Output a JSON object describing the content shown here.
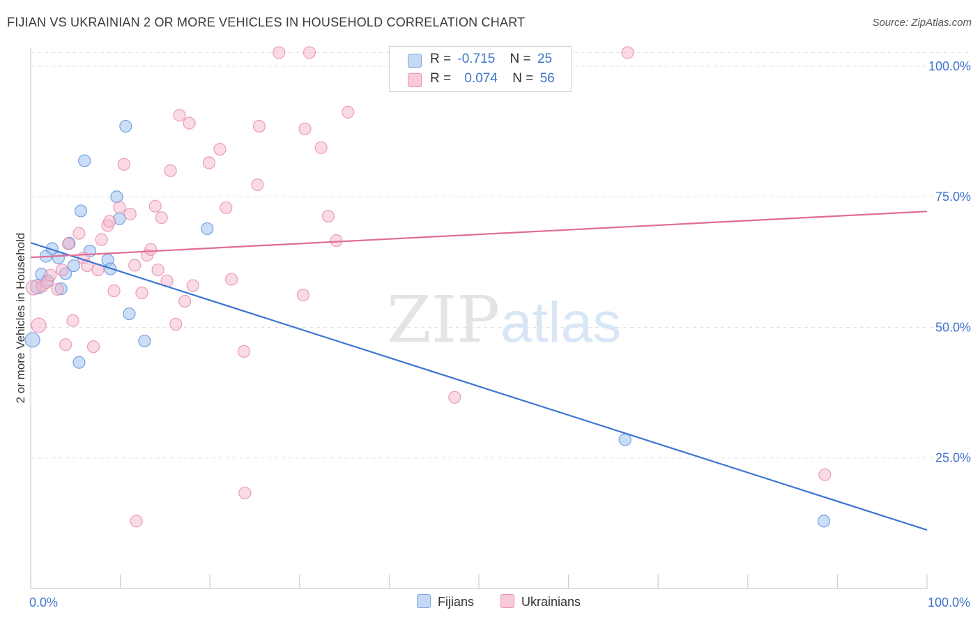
{
  "title": "FIJIAN VS UKRAINIAN 2 OR MORE VEHICLES IN HOUSEHOLD CORRELATION CHART",
  "source": "Source: ZipAtlas.com",
  "watermark": {
    "zip": "ZIP",
    "atlas": "atlas"
  },
  "legend_stats": [
    {
      "r_label": "R =",
      "r_value": "-0.715",
      "n_label": "N =",
      "n_value": "25",
      "color": "#a9c8f2"
    },
    {
      "r_label": "R =",
      "r_value": "0.074",
      "n_label": "N =",
      "n_value": "56",
      "color": "#f6b6cb"
    }
  ],
  "legend_bottom": [
    {
      "label": "Fijians",
      "color": "#a9c8f2"
    },
    {
      "label": "Ukrainians",
      "color": "#f6b6cb"
    }
  ],
  "chart_data": {
    "type": "scatter",
    "title": "FIJIAN VS UKRAINIAN 2 OR MORE VEHICLES IN HOUSEHOLD CORRELATION CHART",
    "xlabel": "",
    "ylabel": "2 or more Vehicles in Household",
    "xlim": [
      0,
      100
    ],
    "ylim": [
      0,
      104
    ],
    "x_tick_labels": [
      {
        "value": 0,
        "label": "0.0%"
      },
      {
        "value": 100,
        "label": "100.0%"
      }
    ],
    "y_tick_labels": [
      {
        "value": 25,
        "label": "25.0%"
      },
      {
        "value": 50,
        "label": "50.0%"
      },
      {
        "value": 75,
        "label": "75.0%"
      },
      {
        "value": 100,
        "label": "100.0%"
      }
    ],
    "grid": true,
    "legend_position": "top-center",
    "series": [
      {
        "name": "Fijians",
        "color": "#5a8fdb",
        "fill": "#a9c8f2",
        "line_color": "#3b76d1",
        "trend": {
          "x": [
            0,
            100
          ],
          "y": [
            66.2,
            11.2
          ]
        },
        "points": [
          {
            "x": 0.2,
            "y": 47.6
          },
          {
            "x": 0.8,
            "y": 57.8
          },
          {
            "x": 1.2,
            "y": 60.2
          },
          {
            "x": 1.7,
            "y": 63.6
          },
          {
            "x": 1.9,
            "y": 59.0
          },
          {
            "x": 2.4,
            "y": 65.1
          },
          {
            "x": 3.1,
            "y": 63.3
          },
          {
            "x": 3.4,
            "y": 57.4
          },
          {
            "x": 3.9,
            "y": 60.3
          },
          {
            "x": 4.3,
            "y": 66.1
          },
          {
            "x": 4.8,
            "y": 61.8
          },
          {
            "x": 5.4,
            "y": 43.3
          },
          {
            "x": 5.6,
            "y": 72.3
          },
          {
            "x": 6.0,
            "y": 81.9
          },
          {
            "x": 6.6,
            "y": 64.6
          },
          {
            "x": 8.6,
            "y": 62.9
          },
          {
            "x": 8.9,
            "y": 61.2
          },
          {
            "x": 9.6,
            "y": 75.0
          },
          {
            "x": 9.9,
            "y": 70.8
          },
          {
            "x": 10.6,
            "y": 88.5
          },
          {
            "x": 11.0,
            "y": 52.6
          },
          {
            "x": 12.7,
            "y": 47.4
          },
          {
            "x": 19.7,
            "y": 68.9
          },
          {
            "x": 66.3,
            "y": 28.5
          },
          {
            "x": 88.5,
            "y": 12.9
          }
        ]
      },
      {
        "name": "Ukrainians",
        "color": "#e58aa8",
        "fill": "#f6b6cb",
        "line_color": "#e06d93",
        "trend": {
          "x": [
            0,
            100
          ],
          "y": [
            63.4,
            72.2
          ]
        },
        "points": [
          {
            "x": 0.3,
            "y": 57.6
          },
          {
            "x": 0.9,
            "y": 50.4
          },
          {
            "x": 1.3,
            "y": 57.9
          },
          {
            "x": 1.8,
            "y": 58.6
          },
          {
            "x": 2.2,
            "y": 60.0
          },
          {
            "x": 3.0,
            "y": 57.3
          },
          {
            "x": 3.5,
            "y": 61.0
          },
          {
            "x": 3.9,
            "y": 46.7
          },
          {
            "x": 4.2,
            "y": 66.0
          },
          {
            "x": 4.7,
            "y": 51.3
          },
          {
            "x": 5.4,
            "y": 68.0
          },
          {
            "x": 5.9,
            "y": 63.3
          },
          {
            "x": 6.3,
            "y": 61.8
          },
          {
            "x": 7.0,
            "y": 46.3
          },
          {
            "x": 7.5,
            "y": 61.0
          },
          {
            "x": 7.9,
            "y": 66.8
          },
          {
            "x": 8.6,
            "y": 69.5
          },
          {
            "x": 8.8,
            "y": 70.3
          },
          {
            "x": 9.3,
            "y": 57.0
          },
          {
            "x": 9.9,
            "y": 73.0
          },
          {
            "x": 10.4,
            "y": 81.2
          },
          {
            "x": 11.1,
            "y": 71.7
          },
          {
            "x": 11.6,
            "y": 61.9
          },
          {
            "x": 11.8,
            "y": 12.9
          },
          {
            "x": 12.4,
            "y": 56.6
          },
          {
            "x": 13.0,
            "y": 63.8
          },
          {
            "x": 13.4,
            "y": 64.9
          },
          {
            "x": 13.9,
            "y": 73.2
          },
          {
            "x": 14.2,
            "y": 61.0
          },
          {
            "x": 14.6,
            "y": 71.0
          },
          {
            "x": 15.2,
            "y": 58.9
          },
          {
            "x": 15.6,
            "y": 80.0
          },
          {
            "x": 16.2,
            "y": 50.6
          },
          {
            "x": 16.6,
            "y": 90.6
          },
          {
            "x": 17.2,
            "y": 55.0
          },
          {
            "x": 17.7,
            "y": 89.1
          },
          {
            "x": 18.1,
            "y": 58.0
          },
          {
            "x": 19.9,
            "y": 81.5
          },
          {
            "x": 21.1,
            "y": 84.1
          },
          {
            "x": 21.8,
            "y": 72.9
          },
          {
            "x": 22.4,
            "y": 59.2
          },
          {
            "x": 23.8,
            "y": 45.4
          },
          {
            "x": 23.9,
            "y": 18.3
          },
          {
            "x": 25.3,
            "y": 77.3
          },
          {
            "x": 25.5,
            "y": 88.5
          },
          {
            "x": 27.7,
            "y": 102.6
          },
          {
            "x": 30.4,
            "y": 56.2
          },
          {
            "x": 30.6,
            "y": 88.0
          },
          {
            "x": 31.1,
            "y": 102.6
          },
          {
            "x": 32.4,
            "y": 84.4
          },
          {
            "x": 33.2,
            "y": 71.3
          },
          {
            "x": 34.1,
            "y": 66.6
          },
          {
            "x": 35.4,
            "y": 91.2
          },
          {
            "x": 47.3,
            "y": 36.6
          },
          {
            "x": 66.6,
            "y": 102.6
          },
          {
            "x": 88.6,
            "y": 21.8
          }
        ]
      }
    ]
  }
}
